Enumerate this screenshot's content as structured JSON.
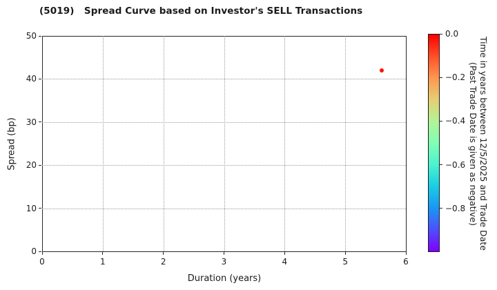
{
  "title": "(5019)   Spread Curve based on Investor's SELL Transactions",
  "chart_data": {
    "type": "scatter",
    "title": "(5019)   Spread Curve based on Investor's SELL Transactions",
    "xlabel": "Duration (years)",
    "ylabel": "Spread (bp)",
    "xlim": [
      0,
      6
    ],
    "ylim": [
      0,
      50
    ],
    "xticks": [
      "0",
      "1",
      "2",
      "3",
      "4",
      "5",
      "6"
    ],
    "yticks": [
      "0",
      "10",
      "20",
      "30",
      "40",
      "50"
    ],
    "grid": true,
    "grid_style": "dotted",
    "legend": "none",
    "points": [
      {
        "duration_years": 5.6,
        "spread_bp": 42.0,
        "time_years": 0.0,
        "color": "#ff1400"
      }
    ],
    "colorbar": {
      "label": "Time in years between 12/5/2025 and Trade Date\n(Past Trade Date is given as negative)",
      "tick_labels": [
        "0.0",
        "−0.2",
        "−0.4",
        "−0.6",
        "−0.8"
      ],
      "vmax": 0.0,
      "vmin": -1.0,
      "colormap": "rainbow",
      "gradient_top_to_bottom": [
        "#ff0000",
        "#ff4f28",
        "#ff964f",
        "#e6ce74",
        "#b3f396",
        "#80ffb4",
        "#4cf3ce",
        "#19cee3",
        "#1a96f3",
        "#4d4ffc",
        "#8000ff"
      ]
    },
    "colors": {
      "marker_red": "#ff1400",
      "grid_gray": "#999999",
      "spine_dark": "#262626",
      "background": "#ffffff"
    }
  }
}
